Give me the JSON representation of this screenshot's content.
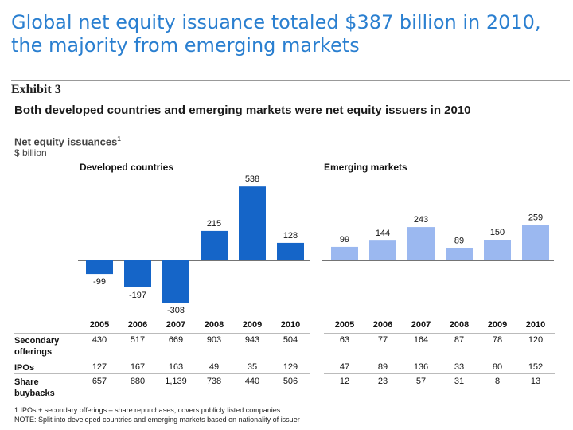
{
  "slide_title": "Global net equity issuance totaled $387 billion in 2010, the majority from emerging markets",
  "exhibit_label": "Exhibit 3",
  "chart_title": "Both developed countries and emerging markets were net equity issuers in 2010",
  "subtitle": "Net equity issuances",
  "subtitle_note": "1",
  "unit_label": "$ billion",
  "chart_data": {
    "type": "bar",
    "categories": [
      "2005",
      "2006",
      "2007",
      "2008",
      "2009",
      "2010"
    ],
    "panels": [
      {
        "title": "Developed countries",
        "color": "#1565c8",
        "values": [
          -99,
          -197,
          -308,
          215,
          538,
          128
        ],
        "labels": [
          "-99",
          "-197",
          "-308",
          "215",
          "538",
          "128"
        ]
      },
      {
        "title": "Emerging markets",
        "color": "#9bb8f0",
        "values": [
          99,
          144,
          243,
          89,
          150,
          259
        ],
        "labels": [
          "99",
          "144",
          "243",
          "89",
          "150",
          "259"
        ]
      }
    ],
    "ylabel": "$ billion",
    "ylim": [
      -308,
      538
    ]
  },
  "table": {
    "years": [
      "2005",
      "2006",
      "2007",
      "2008",
      "2009",
      "2010"
    ],
    "rows": [
      {
        "label": "Secondary offerings",
        "developed": [
          "430",
          "517",
          "669",
          "903",
          "943",
          "504"
        ],
        "emerging": [
          "63",
          "77",
          "164",
          "87",
          "78",
          "120"
        ]
      },
      {
        "label": "IPOs",
        "developed": [
          "127",
          "167",
          "163",
          "49",
          "35",
          "129"
        ],
        "emerging": [
          "47",
          "89",
          "136",
          "33",
          "80",
          "152"
        ]
      },
      {
        "label": "Share buybacks",
        "developed": [
          "657",
          "880",
          "1,139",
          "738",
          "440",
          "506"
        ],
        "emerging": [
          "12",
          "23",
          "57",
          "31",
          "8",
          "13"
        ]
      }
    ]
  },
  "footnotes": [
    "1 IPOs + secondary offerings – share repurchases; covers publicly listed companies.",
    "NOTE: Split into developed countries and emerging markets based on nationality of issuer"
  ]
}
